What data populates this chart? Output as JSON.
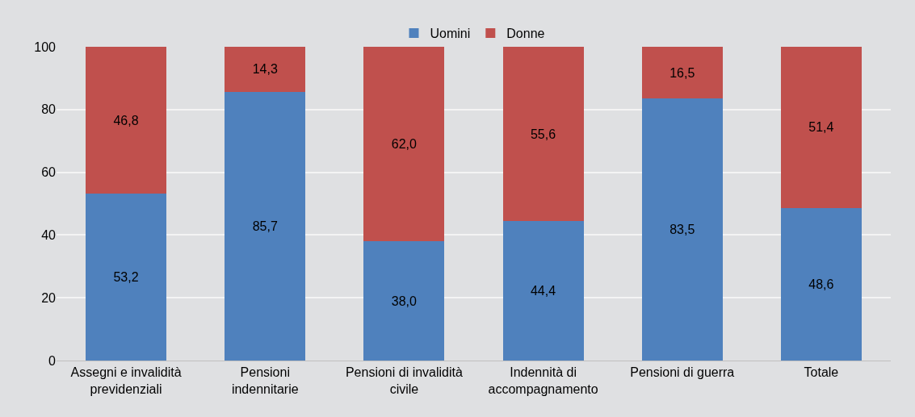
{
  "chart_data": {
    "type": "bar",
    "stacked": true,
    "categories": [
      "Assegni e invalidità\nprevidenziali",
      "Pensioni\nindennitarie",
      "Pensioni di invalidità\ncivile",
      "Indennità di\naccompagnamento",
      "Pensioni di guerra",
      "Totale"
    ],
    "series": [
      {
        "name": "Uomini",
        "color": "#4f81bd",
        "values": [
          53.2,
          85.7,
          38.0,
          44.4,
          83.5,
          48.6
        ],
        "value_labels": [
          "53,2",
          "85,7",
          "38,0",
          "44,4",
          "83,5",
          "48,6"
        ]
      },
      {
        "name": "Donne",
        "color": "#c0504d",
        "values": [
          46.8,
          14.3,
          62.0,
          55.6,
          16.5,
          51.4
        ],
        "value_labels": [
          "46,8",
          "14,3",
          "62,0",
          "55,6",
          "16,5",
          "51,4"
        ]
      }
    ],
    "ylim": [
      0,
      100
    ],
    "yticks": [
      0,
      20,
      40,
      60,
      80,
      100
    ],
    "grid": "y",
    "legend": "top"
  }
}
